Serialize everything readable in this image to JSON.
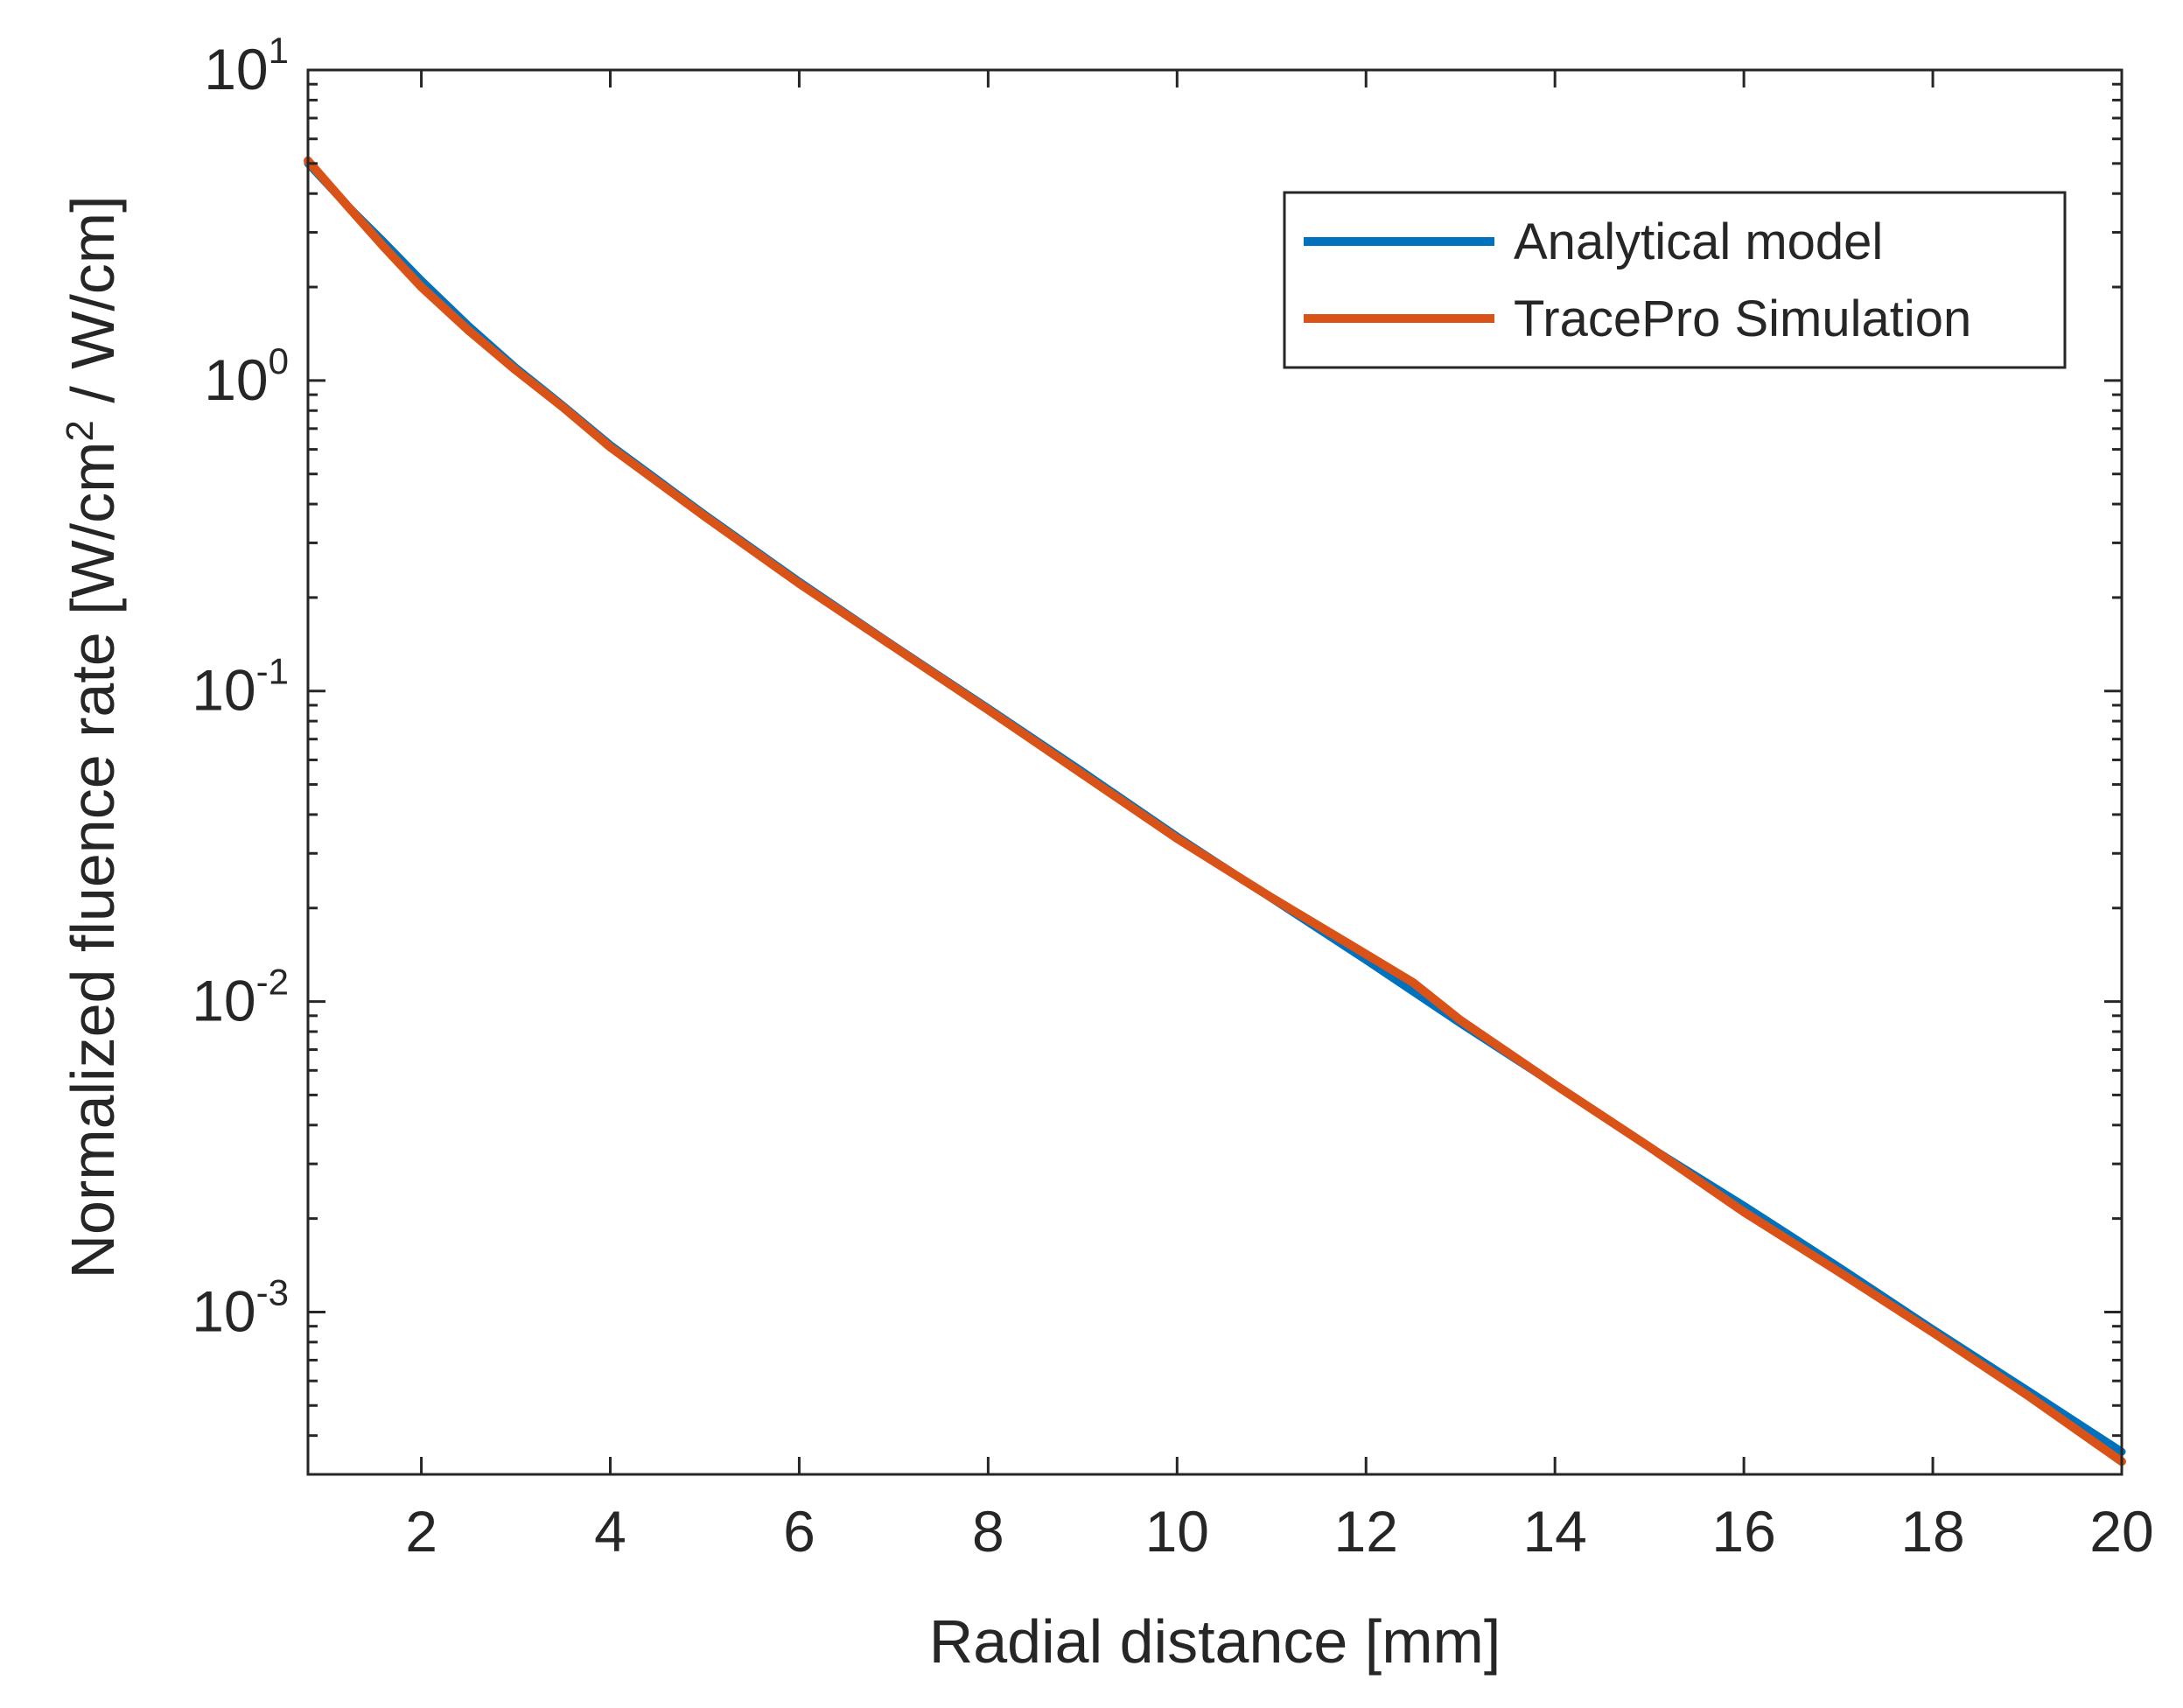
{
  "chart_data": {
    "type": "line",
    "title": "",
    "xlabel": "Radial distance [mm]",
    "ylabel": {
      "prefix": "Normalized fluence rate [W/cm",
      "superscript": "2",
      "suffix": " / W/cm]"
    },
    "xlim": [
      0.8,
      20
    ],
    "ylim": [
      0.0003,
      10
    ],
    "yscale": "log",
    "grid": false,
    "legend_position": "top-right",
    "x_ticks": [
      {
        "value": 2,
        "label": "2"
      },
      {
        "value": 4,
        "label": "4"
      },
      {
        "value": 6,
        "label": "6"
      },
      {
        "value": 8,
        "label": "8"
      },
      {
        "value": 10,
        "label": "10"
      },
      {
        "value": 12,
        "label": "12"
      },
      {
        "value": 14,
        "label": "14"
      },
      {
        "value": 16,
        "label": "16"
      },
      {
        "value": 18,
        "label": "18"
      },
      {
        "value": 20,
        "label": "20"
      }
    ],
    "y_ticks": [
      {
        "value": 10,
        "base": "10",
        "exp": "1"
      },
      {
        "value": 1,
        "base": "10",
        "exp": "0"
      },
      {
        "value": 0.1,
        "base": "10",
        "exp": "-1"
      },
      {
        "value": 0.01,
        "base": "10",
        "exp": "-2"
      },
      {
        "value": 0.001,
        "base": "10",
        "exp": "-3"
      }
    ],
    "series": [
      {
        "name": "Analytical model",
        "color": "#0072BD",
        "x": [
          0.8,
          1.2,
          1.6,
          2,
          2.5,
          3,
          3.5,
          4,
          5,
          6,
          7,
          8,
          9,
          10,
          11,
          12,
          13,
          14,
          15,
          16,
          17,
          18,
          19,
          20
        ],
        "y": [
          5.0,
          3.7,
          2.8,
          2.1,
          1.5,
          1.1,
          0.83,
          0.62,
          0.37,
          0.225,
          0.14,
          0.088,
          0.055,
          0.034,
          0.0215,
          0.0136,
          0.0085,
          0.0054,
          0.0034,
          0.0022,
          0.0014,
          0.00088,
          0.00056,
          0.000355
        ]
      },
      {
        "name": "TracePro Simulation",
        "color": "#D95319",
        "x": [
          0.8,
          1.2,
          1.6,
          2,
          2.5,
          3,
          3.5,
          4,
          5,
          6,
          7,
          8,
          9,
          10,
          11,
          12,
          12.5,
          13,
          14,
          15,
          16,
          17,
          18,
          19,
          20
        ],
        "y": [
          5.1,
          3.7,
          2.7,
          2.0,
          1.45,
          1.08,
          0.82,
          0.61,
          0.365,
          0.222,
          0.139,
          0.087,
          0.054,
          0.0335,
          0.0216,
          0.0142,
          0.0115,
          0.0087,
          0.0054,
          0.0034,
          0.0021,
          0.00135,
          0.00086,
          0.00054,
          0.00033
        ]
      }
    ]
  }
}
